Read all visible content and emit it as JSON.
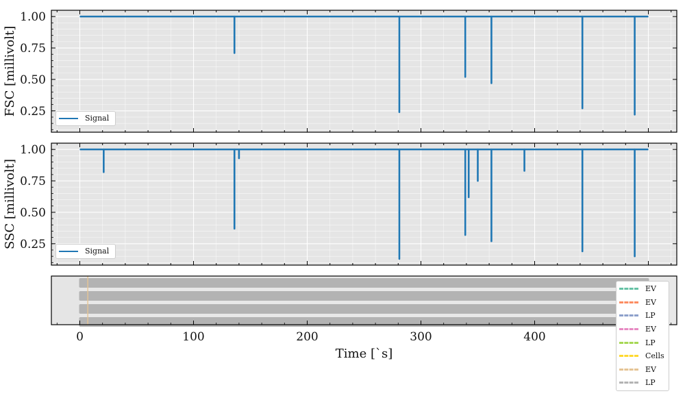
{
  "chart_data": [
    {
      "type": "line",
      "ylabel": "FSC [millivolt]",
      "xlim": [
        -25,
        525
      ],
      "ylim": [
        0.08,
        1.05
      ],
      "yticks": [
        0.25,
        0.5,
        0.75,
        1.0
      ],
      "ytick_labels": [
        "0.25",
        "0.50",
        "0.75",
        "1.00"
      ],
      "grid": true,
      "legend_position": "lower-left",
      "series": [
        {
          "name": "Signal",
          "color": "#1f77b4",
          "baseline": 1.0,
          "x_range": [
            0,
            500
          ],
          "dips": [
            {
              "x": 136,
              "min": 0.71
            },
            {
              "x": 281,
              "min": 0.24
            },
            {
              "x": 339,
              "min": 0.52
            },
            {
              "x": 362,
              "min": 0.47
            },
            {
              "x": 442,
              "min": 0.27
            },
            {
              "x": 488,
              "min": 0.22
            }
          ]
        }
      ]
    },
    {
      "type": "line",
      "ylabel": "SSC [millivolt]",
      "xlim": [
        -25,
        525
      ],
      "ylim": [
        0.08,
        1.05
      ],
      "yticks": [
        0.25,
        0.5,
        0.75,
        1.0
      ],
      "ytick_labels": [
        "0.25",
        "0.50",
        "0.75",
        "1.00"
      ],
      "grid": true,
      "legend_position": "lower-left",
      "series": [
        {
          "name": "Signal",
          "color": "#1f77b4",
          "baseline": 1.0,
          "x_range": [
            0,
            500
          ],
          "dips": [
            {
              "x": 21,
              "min": 0.82
            },
            {
              "x": 136,
              "min": 0.37
            },
            {
              "x": 140,
              "min": 0.93
            },
            {
              "x": 281,
              "min": 0.13
            },
            {
              "x": 339,
              "min": 0.32
            },
            {
              "x": 342,
              "min": 0.62
            },
            {
              "x": 350,
              "min": 0.75
            },
            {
              "x": 362,
              "min": 0.27
            },
            {
              "x": 391,
              "min": 0.83
            },
            {
              "x": 442,
              "min": 0.19
            },
            {
              "x": 488,
              "min": 0.15
            }
          ]
        }
      ]
    },
    {
      "type": "line",
      "xlabel": "Time [`s]",
      "xlim": [
        -25,
        525
      ],
      "xticks": [
        0,
        100,
        200,
        300,
        400,
        500
      ],
      "xtick_labels": [
        "0",
        "100",
        "200",
        "300",
        "400",
        "500"
      ],
      "legend_position": "right, overflowing below",
      "background_band_x": [
        -25,
        0
      ],
      "vertical_marker_x": 7,
      "lanes": 4,
      "lane_color": "#b3b3b3",
      "series": [
        {
          "name": "EV",
          "color": "#66c2a5"
        },
        {
          "name": "EV",
          "color": "#fc8d62"
        },
        {
          "name": "LP",
          "color": "#8da0cb"
        },
        {
          "name": "EV",
          "color": "#e78ac3"
        },
        {
          "name": "LP",
          "color": "#a6d854"
        },
        {
          "name": "Cells",
          "color": "#ffd92f"
        },
        {
          "name": "EV",
          "color": "#e5c494"
        },
        {
          "name": "LP",
          "color": "#b3b3b3"
        }
      ]
    }
  ]
}
